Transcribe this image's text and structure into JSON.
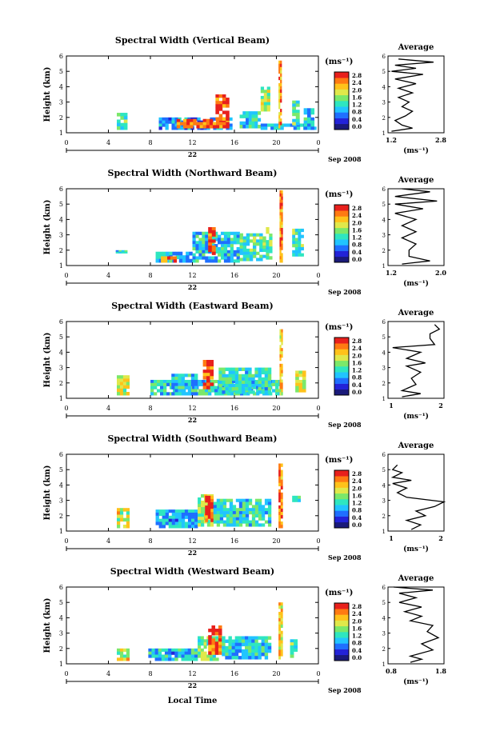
{
  "chart_data": {
    "type": "heatmap",
    "colorbar": {
      "unit_label": "(ms⁻¹)",
      "ticks": [
        "2.8",
        "2.4",
        "2.0",
        "1.6",
        "1.2",
        "0.8",
        "0.4",
        "0.0"
      ],
      "range": [
        0.0,
        2.8
      ]
    },
    "height_axis_label": "Height (km)",
    "height_ticks": [
      "6",
      "5",
      "4",
      "3",
      "2",
      "1"
    ],
    "height_range": [
      1,
      6
    ],
    "time_ticks": [
      "0",
      "4",
      "8",
      "12",
      "16",
      "20",
      "0"
    ],
    "time_range": [
      0,
      24
    ],
    "day_label": "22",
    "month_label": "Sep 2008",
    "xlabel": "Local Time",
    "avg_title": "Average",
    "avg_unit": "(ms⁻¹)",
    "colors": [
      "#1a1a7a",
      "#2323d8",
      "#1f6fff",
      "#21c4ff",
      "#2ee6c0",
      "#7be86a",
      "#e0e84a",
      "#ffc21a",
      "#ff7a12",
      "#e8201c"
    ],
    "panels": [
      {
        "title": "Spectral Width (Vertical Beam)",
        "avg_xticks": [
          "1.2",
          "2.8"
        ],
        "avg_range": [
          1.2,
          2.8
        ],
        "avg_profile": [
          [
            1.3,
            1.1
          ],
          [
            1.9,
            1.3
          ],
          [
            1.6,
            1.5
          ],
          [
            1.4,
            1.8
          ],
          [
            1.7,
            2.1
          ],
          [
            1.9,
            2.4
          ],
          [
            1.6,
            2.7
          ],
          [
            1.8,
            3.0
          ],
          [
            1.5,
            3.3
          ],
          [
            1.9,
            3.6
          ],
          [
            1.5,
            3.9
          ],
          [
            2.0,
            4.2
          ],
          [
            1.4,
            4.5
          ],
          [
            2.2,
            4.8
          ],
          [
            1.3,
            5.0
          ],
          [
            2.0,
            5.2
          ],
          [
            1.4,
            5.4
          ],
          [
            2.5,
            5.6
          ],
          [
            1.5,
            5.8
          ]
        ],
        "data": [
          {
            "t0": 4.8,
            "t1": 5.8,
            "h0": 1.2,
            "h1": 2.3,
            "v": 1.4
          },
          {
            "t0": 8.8,
            "t1": 15.8,
            "h0": 1.2,
            "h1": 2.0,
            "v": 0.8
          },
          {
            "t0": 10.5,
            "t1": 15.5,
            "h0": 1.3,
            "h1": 1.9,
            "v": 2.5
          },
          {
            "t0": 14.2,
            "t1": 15.5,
            "h0": 1.8,
            "h1": 3.5,
            "v": 2.6
          },
          {
            "t0": 16.5,
            "t1": 18.5,
            "h0": 1.3,
            "h1": 2.4,
            "v": 1.2
          },
          {
            "t0": 18.5,
            "t1": 23.8,
            "h0": 1.2,
            "h1": 1.6,
            "v": 1.0
          },
          {
            "t0": 18.5,
            "t1": 19.4,
            "h0": 2.4,
            "h1": 4.0,
            "v": 1.6
          },
          {
            "t0": 20.2,
            "t1": 20.5,
            "h0": 1.3,
            "h1": 5.7,
            "v": 2.2
          },
          {
            "t0": 21.5,
            "t1": 22.2,
            "h0": 1.5,
            "h1": 3.1,
            "v": 1.4
          },
          {
            "t0": 22.6,
            "t1": 23.6,
            "h0": 1.2,
            "h1": 2.6,
            "v": 1.0
          }
        ]
      },
      {
        "title": "Spectral Width (Northward Beam)",
        "avg_xticks": [
          "1.2",
          "2.0"
        ],
        "avg_range": [
          1.2,
          2.0
        ],
        "avg_profile": [
          [
            1.4,
            1.1
          ],
          [
            1.8,
            1.3
          ],
          [
            1.5,
            1.6
          ],
          [
            1.5,
            2.0
          ],
          [
            1.6,
            2.4
          ],
          [
            1.4,
            2.8
          ],
          [
            1.6,
            3.2
          ],
          [
            1.4,
            3.6
          ],
          [
            1.6,
            4.0
          ],
          [
            1.3,
            4.4
          ],
          [
            1.7,
            4.7
          ],
          [
            1.3,
            5.0
          ],
          [
            1.9,
            5.2
          ],
          [
            1.3,
            5.5
          ],
          [
            1.8,
            5.8
          ],
          [
            1.4,
            6.0
          ]
        ],
        "data": [
          {
            "t0": 4.7,
            "t1": 5.8,
            "h0": 1.8,
            "h1": 2.0,
            "v": 1.2
          },
          {
            "t0": 8.5,
            "t1": 12.0,
            "h0": 1.2,
            "h1": 1.9,
            "v": 1.0
          },
          {
            "t0": 9.0,
            "t1": 10.5,
            "h0": 1.2,
            "h1": 1.6,
            "v": 2.2
          },
          {
            "t0": 12.0,
            "t1": 16.5,
            "h0": 1.2,
            "h1": 3.2,
            "v": 1.1
          },
          {
            "t0": 13.5,
            "t1": 14.2,
            "h0": 1.7,
            "h1": 3.5,
            "v": 2.6
          },
          {
            "t0": 16.5,
            "t1": 19.0,
            "h0": 1.3,
            "h1": 3.1,
            "v": 1.3
          },
          {
            "t0": 19.0,
            "t1": 19.6,
            "h0": 1.4,
            "h1": 3.5,
            "v": 1.5
          },
          {
            "t0": 20.3,
            "t1": 20.6,
            "h0": 1.2,
            "h1": 5.9,
            "v": 2.3
          },
          {
            "t0": 21.5,
            "t1": 22.6,
            "h0": 1.6,
            "h1": 3.4,
            "v": 1.3
          }
        ]
      },
      {
        "title": "Spectral Width (Eastward Beam)",
        "avg_xticks": [
          "1",
          "2"
        ],
        "avg_range": [
          1.0,
          2.2
        ],
        "avg_profile": [
          [
            1.3,
            1.1
          ],
          [
            1.7,
            1.3
          ],
          [
            1.3,
            1.5
          ],
          [
            1.6,
            1.9
          ],
          [
            1.5,
            2.3
          ],
          [
            1.7,
            2.7
          ],
          [
            1.4,
            3.1
          ],
          [
            1.8,
            3.3
          ],
          [
            1.4,
            3.6
          ],
          [
            1.7,
            4.0
          ],
          [
            1.1,
            4.3
          ],
          [
            2.0,
            4.5
          ],
          [
            1.9,
            4.9
          ],
          [
            1.9,
            5.2
          ],
          [
            2.1,
            5.5
          ],
          [
            2.0,
            5.8
          ]
        ],
        "data": [
          {
            "t0": 4.8,
            "t1": 6.0,
            "h0": 1.2,
            "h1": 2.5,
            "v": 1.8
          },
          {
            "t0": 8.0,
            "t1": 20.5,
            "h0": 1.2,
            "h1": 2.2,
            "v": 1.2
          },
          {
            "t0": 10.0,
            "t1": 12.5,
            "h0": 1.2,
            "h1": 2.6,
            "v": 1.0
          },
          {
            "t0": 13.0,
            "t1": 14.0,
            "h0": 1.6,
            "h1": 3.5,
            "v": 2.6
          },
          {
            "t0": 14.5,
            "t1": 19.5,
            "h0": 1.3,
            "h1": 3.0,
            "v": 1.2
          },
          {
            "t0": 20.3,
            "t1": 20.6,
            "h0": 1.2,
            "h1": 5.5,
            "v": 2.0
          },
          {
            "t0": 21.8,
            "t1": 22.8,
            "h0": 1.4,
            "h1": 2.8,
            "v": 1.8
          }
        ]
      },
      {
        "title": "Spectral Width (Southward Beam)",
        "avg_xticks": [
          "1",
          "2"
        ],
        "avg_range": [
          0.8,
          2.0
        ],
        "avg_profile": [
          [
            1.3,
            1.1
          ],
          [
            1.5,
            1.4
          ],
          [
            1.2,
            1.7
          ],
          [
            1.6,
            2.0
          ],
          [
            1.4,
            2.3
          ],
          [
            1.8,
            2.6
          ],
          [
            2.0,
            2.9
          ],
          [
            1.2,
            3.2
          ],
          [
            1.0,
            3.5
          ],
          [
            1.2,
            3.8
          ],
          [
            0.9,
            4.1
          ],
          [
            1.3,
            4.3
          ],
          [
            0.9,
            4.5
          ],
          [
            1.1,
            4.8
          ],
          [
            0.9,
            5.0
          ],
          [
            1.0,
            5.3
          ]
        ],
        "data": [
          {
            "t0": 4.8,
            "t1": 6.0,
            "h0": 1.2,
            "h1": 2.5,
            "v": 1.8
          },
          {
            "t0": 8.5,
            "t1": 12.5,
            "h0": 1.2,
            "h1": 2.4,
            "v": 1.0
          },
          {
            "t0": 12.5,
            "t1": 14.0,
            "h0": 1.3,
            "h1": 3.4,
            "v": 1.6
          },
          {
            "t0": 13.2,
            "t1": 14.0,
            "h0": 1.6,
            "h1": 3.3,
            "v": 2.6
          },
          {
            "t0": 14.0,
            "t1": 19.5,
            "h0": 1.3,
            "h1": 3.1,
            "v": 1.2
          },
          {
            "t0": 20.2,
            "t1": 20.6,
            "h0": 1.2,
            "h1": 5.4,
            "v": 2.3
          },
          {
            "t0": 21.5,
            "t1": 22.3,
            "h0": 2.9,
            "h1": 3.3,
            "v": 1.5
          }
        ]
      },
      {
        "title": "Spectral Width (Westward Beam)",
        "avg_xticks": [
          "0.8",
          "1.8"
        ],
        "avg_range": [
          0.8,
          1.8
        ],
        "avg_profile": [
          [
            1.2,
            1.1
          ],
          [
            1.4,
            1.3
          ],
          [
            1.2,
            1.5
          ],
          [
            1.6,
            1.9
          ],
          [
            1.4,
            2.3
          ],
          [
            1.7,
            2.7
          ],
          [
            1.5,
            3.1
          ],
          [
            1.6,
            3.5
          ],
          [
            1.2,
            3.8
          ],
          [
            1.4,
            4.1
          ],
          [
            1.1,
            4.4
          ],
          [
            1.4,
            4.7
          ],
          [
            1.0,
            5.0
          ],
          [
            1.3,
            5.3
          ],
          [
            1.0,
            5.6
          ],
          [
            1.6,
            5.8
          ],
          [
            0.9,
            6.0
          ]
        ],
        "data": [
          {
            "t0": 4.8,
            "t1": 6.0,
            "h0": 1.2,
            "h1": 2.0,
            "v": 1.8
          },
          {
            "t0": 7.8,
            "t1": 12.5,
            "h0": 1.2,
            "h1": 2.0,
            "v": 1.0
          },
          {
            "t0": 12.5,
            "t1": 14.5,
            "h0": 1.2,
            "h1": 2.8,
            "v": 1.4
          },
          {
            "t0": 13.5,
            "t1": 14.8,
            "h0": 1.6,
            "h1": 3.5,
            "v": 2.6
          },
          {
            "t0": 14.8,
            "t1": 19.5,
            "h0": 1.3,
            "h1": 2.8,
            "v": 1.1
          },
          {
            "t0": 20.2,
            "t1": 20.6,
            "h0": 1.3,
            "h1": 5.0,
            "v": 2.0
          },
          {
            "t0": 21.3,
            "t1": 22.0,
            "h0": 1.4,
            "h1": 2.6,
            "v": 1.3
          }
        ]
      }
    ]
  }
}
